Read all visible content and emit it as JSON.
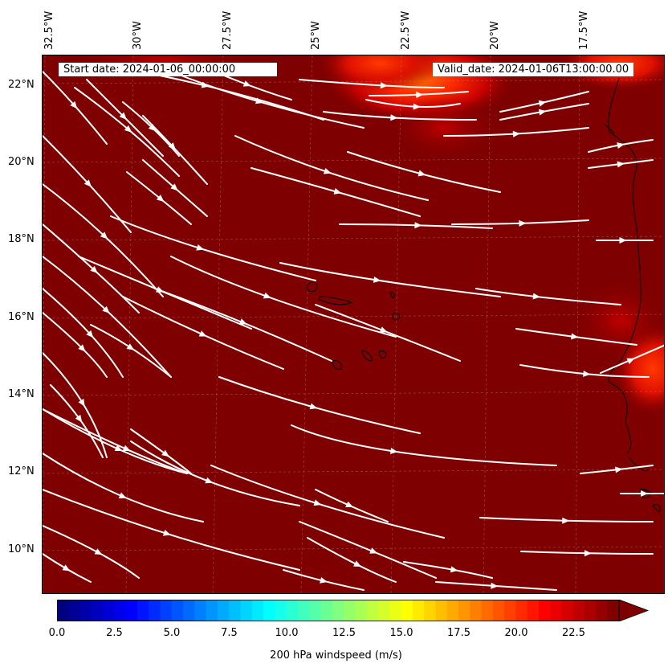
{
  "map": {
    "start_date": "Start date: 2024-01-06_00:00:00",
    "valid_date": "Valid_date: 2024-01-06T13:00:00.00",
    "lon_labels": [
      "32.5°W",
      "30°W",
      "27.5°W",
      "25°W",
      "22.5°W",
      "20°W",
      "17.5°W"
    ],
    "lat_labels": [
      "22°N",
      "20°N",
      "18°N",
      "16°N",
      "14°N",
      "12°N",
      "10°N"
    ],
    "background_color": "#7f0000",
    "streamline_color": "#ffffff"
  },
  "colorbar": {
    "label": "200 hPa windspeed (m/s)",
    "ticks": [
      "0.0",
      "2.5",
      "5.0",
      "7.5",
      "10.0",
      "12.5",
      "15.0",
      "17.5",
      "20.0",
      "22.5"
    ],
    "min": 0,
    "max": 25,
    "extend": "max"
  }
}
